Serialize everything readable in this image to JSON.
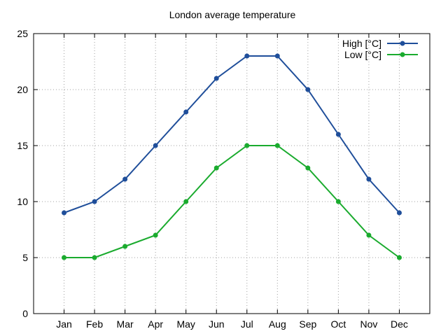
{
  "chart_data": {
    "type": "line",
    "title": "London average temperature",
    "categories": [
      "Jan",
      "Feb",
      "Mar",
      "Apr",
      "May",
      "Jun",
      "Jul",
      "Aug",
      "Sep",
      "Oct",
      "Nov",
      "Dec"
    ],
    "ylim": [
      0,
      25
    ],
    "yticks": [
      0,
      5,
      10,
      15,
      20,
      25
    ],
    "grid": true,
    "legend_position": "top-right",
    "series": [
      {
        "name": "High [°C]",
        "color": "#1f4e9a",
        "values": [
          9,
          10,
          12,
          15,
          18,
          21,
          23,
          23,
          20,
          16,
          12,
          9
        ]
      },
      {
        "name": "Low [°C]",
        "color": "#1aab2e",
        "values": [
          5,
          5,
          6,
          7,
          10,
          13,
          15,
          15,
          13,
          10,
          7,
          5
        ]
      }
    ]
  }
}
